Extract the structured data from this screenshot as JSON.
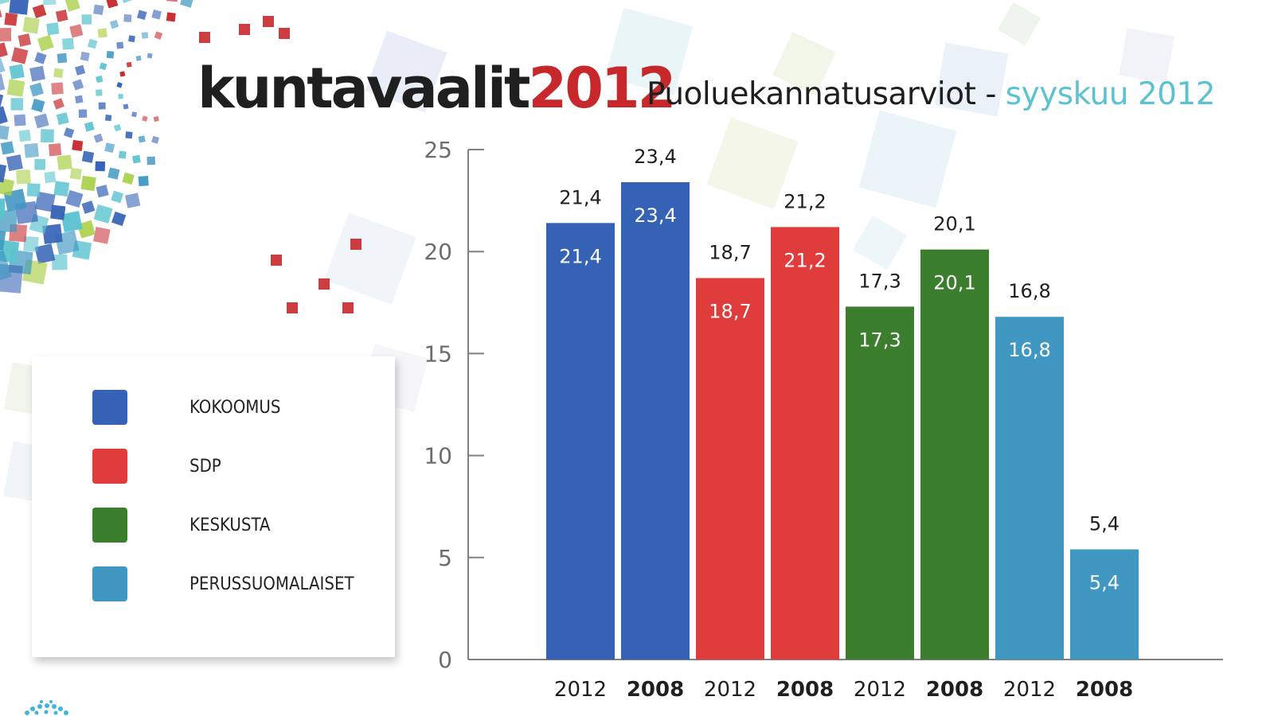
{
  "header": {
    "title_main": "kuntavaalit",
    "title_year": "2012",
    "subtitle": "Puoluekannatusarviot -",
    "subtitle_accent": "syyskuu 2012"
  },
  "legend": {
    "items": [
      {
        "label": "KOKOOMUS",
        "color": "#3562b5"
      },
      {
        "label": "SDP",
        "color": "#e03c3c"
      },
      {
        "label": "KESKUSTA",
        "color": "#3a7e2e"
      },
      {
        "label": "PERUSSUOMALAISET",
        "color": "#3f97c2"
      }
    ]
  },
  "chart_data": {
    "type": "bar",
    "title": "Puoluekannatusarviot - syyskuu 2012",
    "xlabel": "",
    "ylabel": "",
    "ylim": [
      0,
      25
    ],
    "yticks": [
      0,
      5,
      10,
      15,
      20,
      25
    ],
    "grid": false,
    "legend_position": "left",
    "bars": [
      {
        "party": "KOKOOMUS",
        "year": "2012",
        "value": 21.4,
        "label": "21,4",
        "color": "#3562b5"
      },
      {
        "party": "KOKOOMUS",
        "year": "2008",
        "value": 23.4,
        "label": "23,4",
        "color": "#3562b5"
      },
      {
        "party": "SDP",
        "year": "2012",
        "value": 18.7,
        "label": "18,7",
        "color": "#e03c3c"
      },
      {
        "party": "SDP",
        "year": "2008",
        "value": 21.2,
        "label": "21,2",
        "color": "#e03c3c"
      },
      {
        "party": "KESKUSTA",
        "year": "2012",
        "value": 17.3,
        "label": "17,3",
        "color": "#3a7e2e"
      },
      {
        "party": "KESKUSTA",
        "year": "2008",
        "value": 20.1,
        "label": "20,1",
        "color": "#3a7e2e"
      },
      {
        "party": "PERUSSUOMALAISET",
        "year": "2012",
        "value": 16.8,
        "label": "16,8",
        "color": "#3f97c2"
      },
      {
        "party": "PERUSSUOMALAISET",
        "year": "2008",
        "value": 5.4,
        "label": "5,4",
        "color": "#3f97c2"
      }
    ]
  },
  "colors": {
    "title_year": "#c6282c",
    "subtitle_accent": "#5bc3cf",
    "axis": "#808080"
  }
}
